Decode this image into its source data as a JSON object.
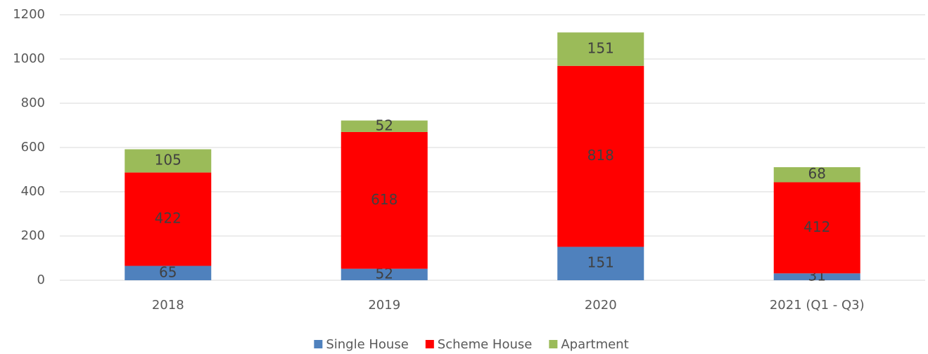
{
  "chart_data": {
    "type": "stacked_bar",
    "categories": [
      "2018",
      "2019",
      "2020",
      "2021 (Q1 - Q3)"
    ],
    "series": [
      {
        "name": "Single House",
        "color": "#4f81bd",
        "values": [
          65,
          52,
          151,
          31
        ]
      },
      {
        "name": "Scheme House",
        "color": "#ff0000",
        "values": [
          422,
          618,
          818,
          412
        ]
      },
      {
        "name": "Apartment",
        "color": "#9bbb59",
        "values": [
          105,
          52,
          151,
          68
        ]
      }
    ],
    "ylim": [
      0,
      1200
    ],
    "yticks": [
      0,
      200,
      400,
      600,
      800,
      1000,
      1200
    ],
    "grid": true,
    "legend": "bottom"
  }
}
